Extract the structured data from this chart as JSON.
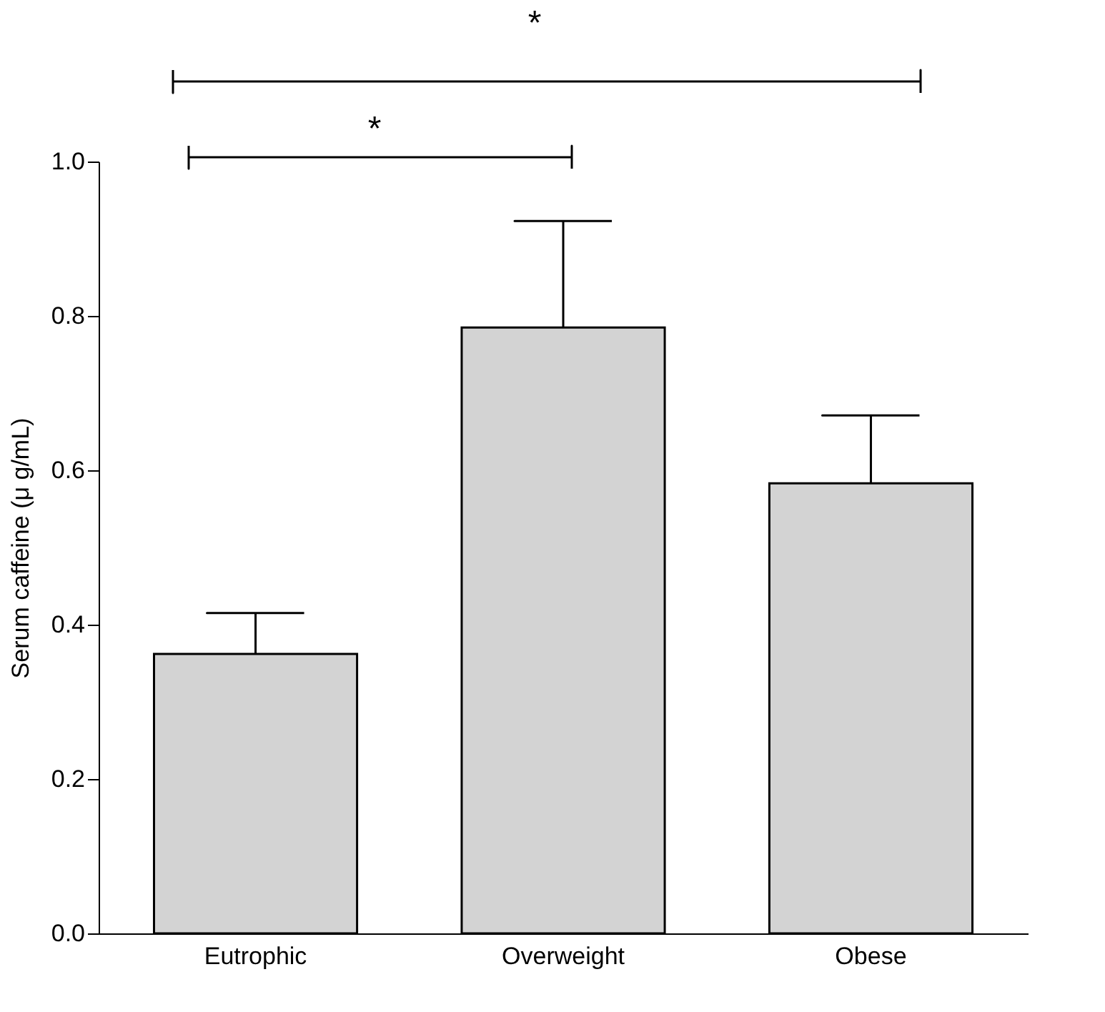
{
  "chart_data": {
    "type": "bar",
    "ylabel": "Serum caffeine (μ g/mL)",
    "categories": [
      "Eutrophic",
      "Overweight",
      "Obese"
    ],
    "values": [
      0.362,
      0.785,
      0.583
    ],
    "errors": [
      [
        0.362,
        0.415
      ],
      [
        0.785,
        0.923
      ],
      [
        0.583,
        0.671
      ]
    ],
    "color": "#d3d3d3",
    "ylim": [
      0,
      1.0
    ],
    "yticks": [
      {
        "value": 0,
        "label": "0.0"
      },
      {
        "value": 0.2,
        "label": "0.2"
      },
      {
        "value": 0.4,
        "label": "0.4"
      },
      {
        "value": 0.6,
        "label": "0.6"
      },
      {
        "value": 0.8,
        "label": "0.8"
      },
      {
        "value": 1.0,
        "label": "1.0"
      }
    ],
    "grid": false,
    "annotations": [
      "*",
      "*"
    ]
  }
}
